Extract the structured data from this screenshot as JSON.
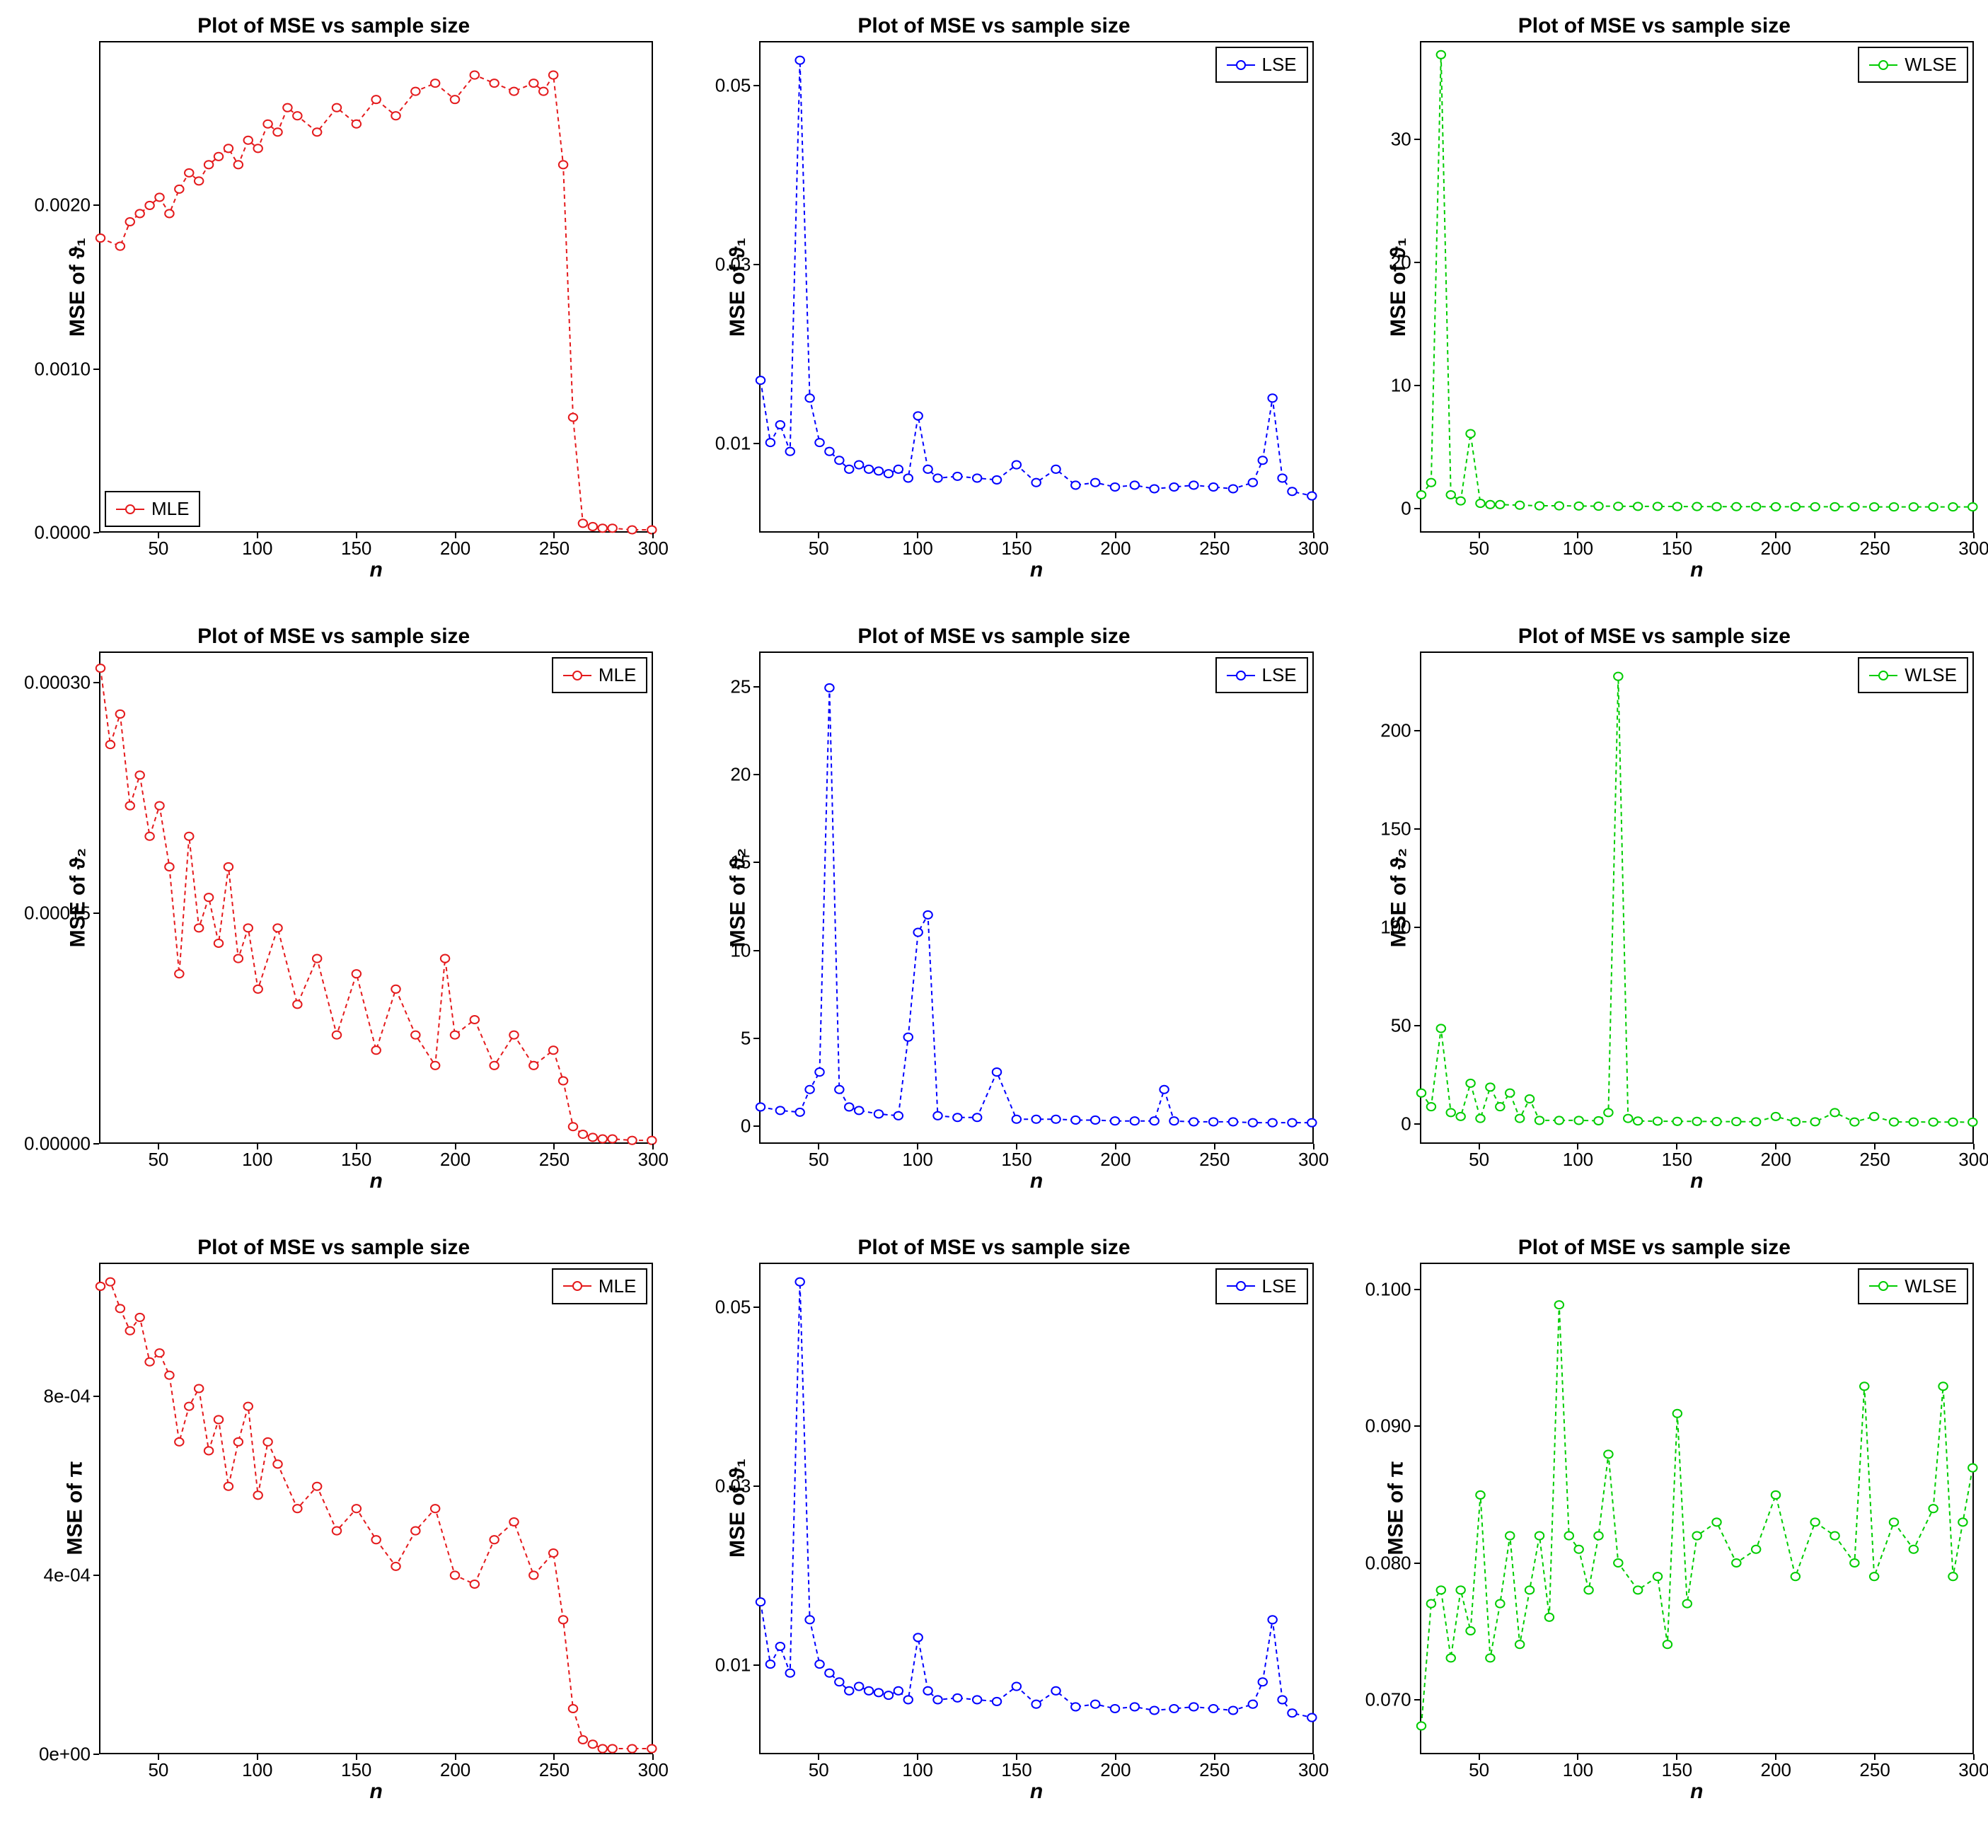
{
  "global": {
    "title": "Plot of MSE vs sample size",
    "xlabel": "n",
    "xticks": [
      50,
      100,
      150,
      200,
      250,
      300
    ],
    "xlim": [
      20,
      300
    ],
    "marker_size": 5,
    "line_width": 2,
    "line_dash": "6,5",
    "background": "#ffffff",
    "border_color": "#000000",
    "title_fontsize": 30,
    "label_fontsize": 30,
    "tick_fontsize": 26
  },
  "methods": {
    "MLE": {
      "label": "MLE",
      "color": "#e41a1c"
    },
    "LSE": {
      "label": "LSE",
      "color": "#0000ff"
    },
    "WLSE": {
      "label": "WLSE",
      "color": "#00cc00"
    }
  },
  "panels": [
    {
      "id": "p11",
      "method": "MLE",
      "ylabel": "MSE of ϑ₁",
      "legend_pos": "bottom-left",
      "ylim": [
        0,
        0.003
      ],
      "yticks": [
        0.0,
        0.001,
        0.002
      ],
      "ytick_labels": [
        "0.0000",
        "0.0010",
        "0.0020"
      ],
      "x": [
        20,
        30,
        35,
        40,
        45,
        50,
        55,
        60,
        65,
        70,
        75,
        80,
        85,
        90,
        95,
        100,
        105,
        110,
        115,
        120,
        130,
        140,
        150,
        160,
        170,
        180,
        190,
        200,
        210,
        220,
        230,
        240,
        245,
        250,
        255,
        260,
        265,
        270,
        275,
        280,
        290,
        300
      ],
      "y": [
        0.0018,
        0.00175,
        0.0019,
        0.00195,
        0.002,
        0.00205,
        0.00195,
        0.0021,
        0.0022,
        0.00215,
        0.00225,
        0.0023,
        0.00235,
        0.00225,
        0.0024,
        0.00235,
        0.0025,
        0.00245,
        0.0026,
        0.00255,
        0.00245,
        0.0026,
        0.0025,
        0.00265,
        0.00255,
        0.0027,
        0.00275,
        0.00265,
        0.0028,
        0.00275,
        0.0027,
        0.00275,
        0.0027,
        0.0028,
        0.00225,
        0.0007,
        5e-05,
        3e-05,
        2e-05,
        2e-05,
        1e-05,
        1e-05
      ]
    },
    {
      "id": "p12",
      "method": "LSE",
      "ylabel": "MSE of ϑ₁",
      "legend_pos": "top-right",
      "ylim": [
        0,
        0.055
      ],
      "yticks": [
        0.01,
        0.03,
        0.05
      ],
      "ytick_labels": [
        "0.01",
        "0.03",
        "0.05"
      ],
      "x": [
        20,
        25,
        30,
        35,
        40,
        45,
        50,
        55,
        60,
        65,
        70,
        75,
        80,
        85,
        90,
        95,
        100,
        105,
        110,
        120,
        130,
        140,
        150,
        160,
        170,
        180,
        190,
        200,
        210,
        220,
        230,
        240,
        250,
        260,
        270,
        275,
        280,
        285,
        290,
        300
      ],
      "y": [
        0.017,
        0.01,
        0.012,
        0.009,
        0.053,
        0.015,
        0.01,
        0.009,
        0.008,
        0.007,
        0.0075,
        0.007,
        0.0068,
        0.0065,
        0.007,
        0.006,
        0.013,
        0.007,
        0.006,
        0.0062,
        0.006,
        0.0058,
        0.0075,
        0.0055,
        0.007,
        0.0052,
        0.0055,
        0.005,
        0.0052,
        0.0048,
        0.005,
        0.0052,
        0.005,
        0.0048,
        0.0055,
        0.008,
        0.015,
        0.006,
        0.0045,
        0.004
      ]
    },
    {
      "id": "p13",
      "method": "WLSE",
      "ylabel": "MSE of ϑ₁",
      "legend_pos": "top-right",
      "ylim": [
        -2,
        38
      ],
      "yticks": [
        0,
        10,
        20,
        30
      ],
      "ytick_labels": [
        "0",
        "10",
        "20",
        "30"
      ],
      "x": [
        20,
        25,
        30,
        35,
        40,
        45,
        50,
        55,
        60,
        70,
        80,
        90,
        100,
        110,
        120,
        130,
        140,
        150,
        160,
        170,
        180,
        190,
        200,
        210,
        220,
        230,
        240,
        250,
        260,
        270,
        280,
        290,
        300
      ],
      "y": [
        1,
        2,
        37,
        1,
        0.5,
        6,
        0.3,
        0.2,
        0.2,
        0.15,
        0.1,
        0.1,
        0.08,
        0.07,
        0.06,
        0.05,
        0.05,
        0.04,
        0.04,
        0.03,
        0.03,
        0.03,
        0.02,
        0.02,
        0.02,
        0.02,
        0.02,
        0.01,
        0.01,
        0.01,
        0.01,
        0.01,
        0.01
      ]
    },
    {
      "id": "p21",
      "method": "MLE",
      "ylabel": "MSE of ϑ₂",
      "legend_pos": "top-right",
      "ylim": [
        0,
        0.00032
      ],
      "yticks": [
        0.0,
        0.00015,
        0.0003
      ],
      "ytick_labels": [
        "0.00000",
        "0.00015",
        "0.00030"
      ],
      "x": [
        20,
        25,
        30,
        35,
        40,
        45,
        50,
        55,
        60,
        65,
        70,
        75,
        80,
        85,
        90,
        95,
        100,
        110,
        120,
        130,
        140,
        150,
        160,
        170,
        180,
        190,
        195,
        200,
        210,
        220,
        230,
        240,
        250,
        255,
        260,
        265,
        270,
        275,
        280,
        290,
        300
      ],
      "y": [
        0.00031,
        0.00026,
        0.00028,
        0.00022,
        0.00024,
        0.0002,
        0.00022,
        0.00018,
        0.00011,
        0.0002,
        0.00014,
        0.00016,
        0.00013,
        0.00018,
        0.00012,
        0.00014,
        0.0001,
        0.00014,
        9e-05,
        0.00012,
        7e-05,
        0.00011,
        6e-05,
        0.0001,
        7e-05,
        5e-05,
        0.00012,
        7e-05,
        8e-05,
        5e-05,
        7e-05,
        5e-05,
        6e-05,
        4e-05,
        1e-05,
        5e-06,
        3e-06,
        2e-06,
        2e-06,
        1e-06,
        1e-06
      ]
    },
    {
      "id": "p22",
      "method": "LSE",
      "ylabel": "MSE of ϑ₂",
      "legend_pos": "top-right",
      "ylim": [
        -1,
        27
      ],
      "yticks": [
        0,
        5,
        10,
        15,
        20,
        25
      ],
      "ytick_labels": [
        "0",
        "5",
        "10",
        "15",
        "20",
        "25"
      ],
      "x": [
        20,
        30,
        40,
        45,
        50,
        55,
        60,
        65,
        70,
        80,
        90,
        95,
        100,
        105,
        110,
        120,
        130,
        140,
        150,
        160,
        170,
        180,
        190,
        200,
        210,
        220,
        225,
        230,
        240,
        250,
        260,
        270,
        280,
        290,
        300
      ],
      "y": [
        1,
        0.8,
        0.7,
        2,
        3,
        25,
        2,
        1,
        0.8,
        0.6,
        0.5,
        5,
        11,
        12,
        0.5,
        0.4,
        0.4,
        3,
        0.3,
        0.3,
        0.3,
        0.25,
        0.25,
        0.2,
        0.2,
        0.2,
        2,
        0.2,
        0.15,
        0.15,
        0.15,
        0.1,
        0.1,
        0.1,
        0.1
      ]
    },
    {
      "id": "p23",
      "method": "WLSE",
      "ylabel": "MSE of ϑ₂",
      "legend_pos": "top-right",
      "ylim": [
        -10,
        240
      ],
      "yticks": [
        0,
        50,
        100,
        150,
        200
      ],
      "ytick_labels": [
        "0",
        "50",
        "100",
        "150",
        "200"
      ],
      "x": [
        20,
        25,
        30,
        35,
        40,
        45,
        50,
        55,
        60,
        65,
        70,
        75,
        80,
        90,
        100,
        110,
        115,
        120,
        125,
        130,
        140,
        150,
        160,
        170,
        180,
        190,
        200,
        210,
        220,
        230,
        240,
        250,
        260,
        270,
        280,
        290,
        300
      ],
      "y": [
        15,
        8,
        48,
        5,
        3,
        20,
        2,
        18,
        8,
        15,
        2,
        12,
        1,
        1,
        1,
        0.8,
        5,
        228,
        2,
        0.7,
        0.6,
        0.5,
        0.5,
        0.4,
        0.4,
        0.3,
        3,
        0.3,
        0.3,
        5,
        0.2,
        3,
        0.2,
        0.2,
        0.15,
        0.15,
        0.1
      ]
    },
    {
      "id": "p31",
      "method": "MLE",
      "ylabel": "MSE of π",
      "legend_pos": "top-right",
      "ylim": [
        0,
        0.0011
      ],
      "yticks": [
        0,
        0.0004,
        0.0008
      ],
      "ytick_labels": [
        "0e+00",
        "4e-04",
        "8e-04"
      ],
      "x": [
        20,
        25,
        30,
        35,
        40,
        45,
        50,
        55,
        60,
        65,
        70,
        75,
        80,
        85,
        90,
        95,
        100,
        105,
        110,
        120,
        130,
        140,
        150,
        160,
        170,
        180,
        190,
        200,
        210,
        220,
        230,
        240,
        250,
        255,
        260,
        265,
        270,
        275,
        280,
        290,
        300
      ],
      "y": [
        0.00105,
        0.00106,
        0.001,
        0.00095,
        0.00098,
        0.00088,
        0.0009,
        0.00085,
        0.0007,
        0.00078,
        0.00082,
        0.00068,
        0.00075,
        0.0006,
        0.0007,
        0.00078,
        0.00058,
        0.0007,
        0.00065,
        0.00055,
        0.0006,
        0.0005,
        0.00055,
        0.00048,
        0.00042,
        0.0005,
        0.00055,
        0.0004,
        0.00038,
        0.00048,
        0.00052,
        0.0004,
        0.00045,
        0.0003,
        0.0001,
        3e-05,
        2e-05,
        1e-05,
        1e-05,
        1e-05,
        1e-05
      ]
    },
    {
      "id": "p32",
      "method": "LSE",
      "ylabel": "MSE of ϑ₁",
      "legend_pos": "top-right",
      "ylim": [
        0,
        0.055
      ],
      "yticks": [
        0.01,
        0.03,
        0.05
      ],
      "ytick_labels": [
        "0.01",
        "0.03",
        "0.05"
      ],
      "x": [
        20,
        25,
        30,
        35,
        40,
        45,
        50,
        55,
        60,
        65,
        70,
        75,
        80,
        85,
        90,
        95,
        100,
        105,
        110,
        120,
        130,
        140,
        150,
        160,
        170,
        180,
        190,
        200,
        210,
        220,
        230,
        240,
        250,
        260,
        270,
        275,
        280,
        285,
        290,
        300
      ],
      "y": [
        0.017,
        0.01,
        0.012,
        0.009,
        0.053,
        0.015,
        0.01,
        0.009,
        0.008,
        0.007,
        0.0075,
        0.007,
        0.0068,
        0.0065,
        0.007,
        0.006,
        0.013,
        0.007,
        0.006,
        0.0062,
        0.006,
        0.0058,
        0.0075,
        0.0055,
        0.007,
        0.0052,
        0.0055,
        0.005,
        0.0052,
        0.0048,
        0.005,
        0.0052,
        0.005,
        0.0048,
        0.0055,
        0.008,
        0.015,
        0.006,
        0.0045,
        0.004
      ]
    },
    {
      "id": "p33",
      "method": "WLSE",
      "ylabel": "MSE of π",
      "legend_pos": "top-right",
      "ylim": [
        0.066,
        0.102
      ],
      "yticks": [
        0.07,
        0.08,
        0.09,
        0.1
      ],
      "ytick_labels": [
        "0.070",
        "0.080",
        "0.090",
        "0.100"
      ],
      "x": [
        20,
        25,
        30,
        35,
        40,
        45,
        50,
        55,
        60,
        65,
        70,
        75,
        80,
        85,
        90,
        95,
        100,
        105,
        110,
        115,
        120,
        130,
        140,
        145,
        150,
        155,
        160,
        170,
        180,
        190,
        200,
        210,
        220,
        230,
        240,
        245,
        250,
        260,
        270,
        280,
        285,
        290,
        295,
        300
      ],
      "y": [
        0.068,
        0.077,
        0.078,
        0.073,
        0.078,
        0.075,
        0.085,
        0.073,
        0.077,
        0.082,
        0.074,
        0.078,
        0.082,
        0.076,
        0.099,
        0.082,
        0.081,
        0.078,
        0.082,
        0.088,
        0.08,
        0.078,
        0.079,
        0.074,
        0.091,
        0.077,
        0.082,
        0.083,
        0.08,
        0.081,
        0.085,
        0.079,
        0.083,
        0.082,
        0.08,
        0.093,
        0.079,
        0.083,
        0.081,
        0.084,
        0.093,
        0.079,
        0.083,
        0.087
      ]
    }
  ]
}
